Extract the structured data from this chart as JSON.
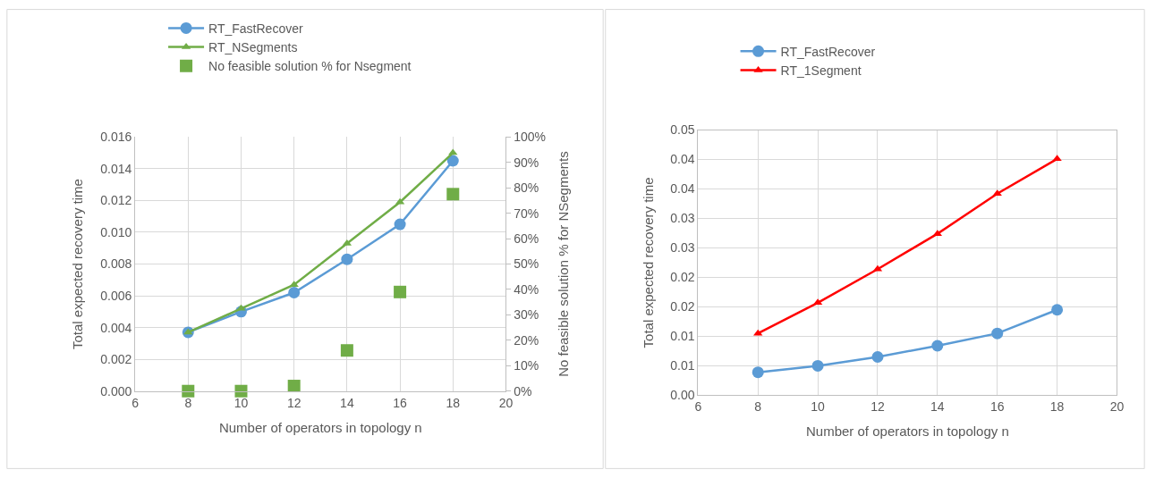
{
  "chart_data": [
    {
      "type": "line",
      "xlabel": "Number of operators in topology n",
      "ylabel": "Total expected recovery time",
      "y2label": "No feasible solution % for NSegments",
      "x": [
        8,
        10,
        12,
        14,
        16,
        18
      ],
      "series": [
        {
          "name": "RT_FastRecover",
          "color": "#5b9bd5",
          "marker": "circle",
          "values": [
            0.0037,
            0.005,
            0.0062,
            0.0083,
            0.0105,
            0.0145
          ]
        },
        {
          "name": "RT_NSegments",
          "color": "#70ad47",
          "marker": "triangle",
          "values": [
            0.0037,
            0.0052,
            0.0067,
            0.0093,
            0.0119,
            0.015
          ]
        },
        {
          "name": "No feasible solution % for Nsegment",
          "type": "scatter",
          "axis": "y2",
          "color": "#70ad47",
          "marker": "square",
          "values": [
            0,
            0,
            2,
            16,
            39,
            77.5
          ]
        }
      ],
      "xlim": [
        6,
        20
      ],
      "xticks": [
        6,
        8,
        10,
        12,
        14,
        16,
        18,
        20
      ],
      "ylim": [
        0,
        0.016
      ],
      "yticks": [
        {
          "value": 0,
          "label": "0.000"
        },
        {
          "value": 0.002,
          "label": "0.002"
        },
        {
          "value": 0.004,
          "label": "0.004"
        },
        {
          "value": 0.006,
          "label": "0.006"
        },
        {
          "value": 0.008,
          "label": "0.008"
        },
        {
          "value": 0.01,
          "label": "0.010"
        },
        {
          "value": 0.012,
          "label": "0.012"
        },
        {
          "value": 0.014,
          "label": "0.014"
        },
        {
          "value": 0.016,
          "label": "0.016"
        }
      ],
      "y2lim": [
        0,
        100
      ],
      "y2ticks": [
        {
          "value": 0,
          "label": "0%"
        },
        {
          "value": 10,
          "label": "10%"
        },
        {
          "value": 20,
          "label": "20%"
        },
        {
          "value": 30,
          "label": "30%"
        },
        {
          "value": 40,
          "label": "40%"
        },
        {
          "value": 50,
          "label": "50%"
        },
        {
          "value": 60,
          "label": "60%"
        },
        {
          "value": 70,
          "label": "70%"
        },
        {
          "value": 80,
          "label": "80%"
        },
        {
          "value": 90,
          "label": "90%"
        },
        {
          "value": 100,
          "label": "100%"
        }
      ],
      "grid": true,
      "legend": "top"
    },
    {
      "type": "line",
      "xlabel": "Number of operators in topology n",
      "ylabel": "Total expected recovery time",
      "x": [
        8,
        10,
        12,
        14,
        16,
        18
      ],
      "series": [
        {
          "name": "RT_FastRecover",
          "color": "#5b9bd5",
          "marker": "circle",
          "values": [
            0.0039,
            0.005,
            0.0065,
            0.0084,
            0.0105,
            0.0145
          ]
        },
        {
          "name": "RT_1Segment",
          "color": "#ff0000",
          "marker": "triangle",
          "values": [
            0.0105,
            0.0157,
            0.0214,
            0.0274,
            0.0342,
            0.0401
          ]
        }
      ],
      "xlim": [
        6,
        20
      ],
      "xticks": [
        6,
        8,
        10,
        12,
        14,
        16,
        18,
        20
      ],
      "ylim": [
        0,
        0.045
      ],
      "yticks": [
        {
          "value": 0,
          "label": "0.00"
        },
        {
          "value": 0.005,
          "label": "0.01"
        },
        {
          "value": 0.01,
          "label": "0.01"
        },
        {
          "value": 0.015,
          "label": "0.02"
        },
        {
          "value": 0.02,
          "label": "0.02"
        },
        {
          "value": 0.025,
          "label": "0.03"
        },
        {
          "value": 0.03,
          "label": "0.03"
        },
        {
          "value": 0.035,
          "label": "0.04"
        },
        {
          "value": 0.04,
          "label": "0.04"
        },
        {
          "value": 0.045,
          "label": "0.05"
        }
      ],
      "grid": true,
      "legend": "top"
    }
  ]
}
